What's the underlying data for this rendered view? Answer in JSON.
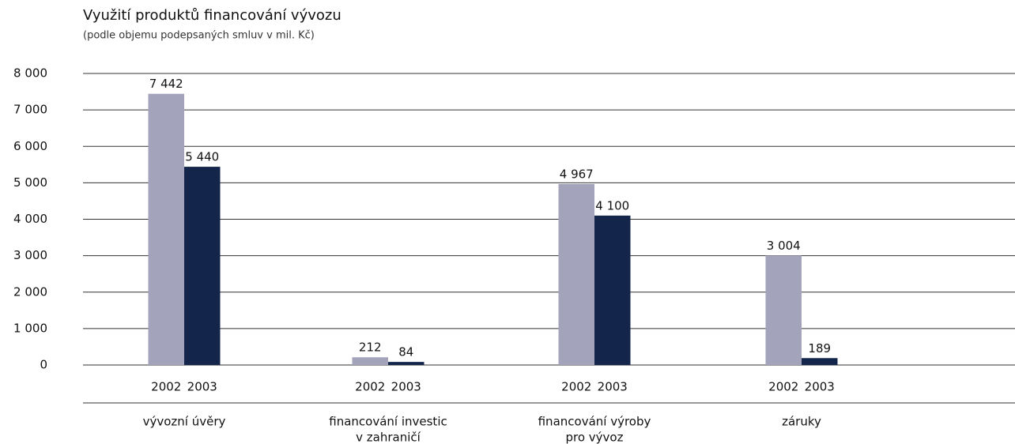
{
  "chart_data": {
    "type": "bar",
    "title": "Využití produktů financování vývozu",
    "subtitle": "(podle objemu podepsaných smluv v mil. Kč)",
    "categories": [
      [
        "vývozní úvěry"
      ],
      [
        "financování investic",
        "v zahraničí"
      ],
      [
        "financování výroby",
        "pro vývoz"
      ],
      [
        "záruky"
      ]
    ],
    "series": [
      {
        "name": "2002",
        "color": "#a3a3bb",
        "values": [
          7442,
          212,
          4967,
          3004
        ],
        "value_labels": [
          "7 442",
          "212",
          "4 967",
          "3 004"
        ]
      },
      {
        "name": "2003",
        "color": "#13254a",
        "values": [
          5440,
          84,
          4100,
          189
        ],
        "value_labels": [
          "5 440",
          "84",
          "4 100",
          "189"
        ]
      }
    ],
    "ylim": [
      0,
      8000
    ],
    "yticks": [
      0,
      {
        "value": 1000,
        "label": "1 000"
      },
      {
        "value": 2000,
        "label": "2 000"
      },
      {
        "value": 3000,
        "label": "3 000"
      },
      {
        "value": 4000,
        "label": "4 000"
      },
      {
        "value": 5000,
        "label": "5 000"
      },
      {
        "value": 6000,
        "label": "6 000"
      },
      {
        "value": 7000,
        "label": "7 000"
      },
      {
        "value": 8000,
        "label": "8 000"
      }
    ],
    "grid": true
  }
}
